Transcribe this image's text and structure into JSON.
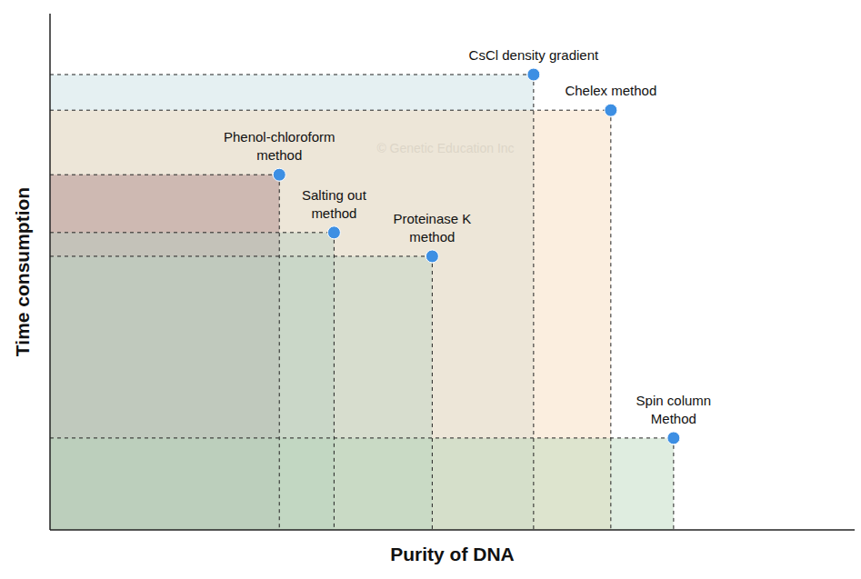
{
  "chart_data": {
    "type": "scatter",
    "x_label": "Purity of DNA",
    "y_label": "Time consumption",
    "annotations": [
      "© Genetic Education Inc"
    ],
    "labels": [
      "CsCl density gradient",
      "Chelex method",
      "Phenol-chloroform\nmethod",
      "Salting out\nmethod",
      "Proteinase K\nmethod",
      "Spin column\nMethod"
    ],
    "x": [
      60.1,
      69.7,
      28.5,
      35.3,
      47.5,
      77.5
    ],
    "values": [
      88.2,
      81.3,
      68.8,
      57.6,
      53.0,
      17.8
    ],
    "color": "#3d8fe3",
    "xlim": [
      0,
      100
    ],
    "ylim": [
      0,
      100
    ],
    "xticks": [],
    "yticks": [],
    "tick_labels": false,
    "grid": false
  }
}
